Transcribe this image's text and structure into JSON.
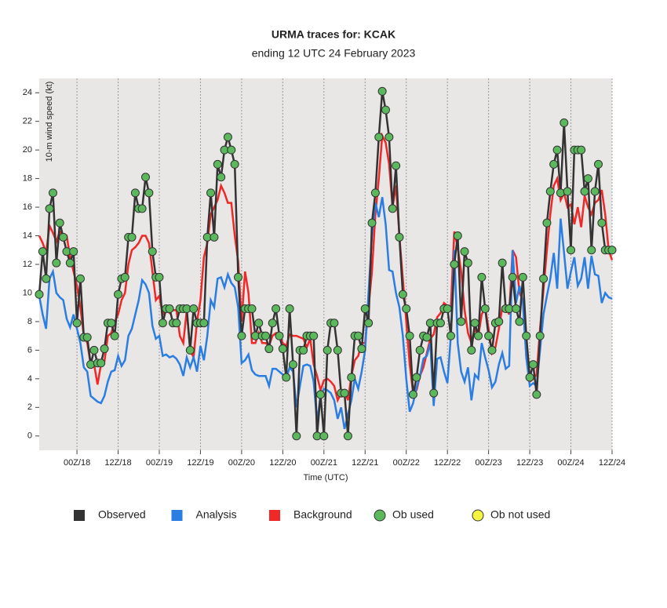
{
  "chart_data": {
    "type": "line",
    "title": "URMA traces for: KCAK",
    "subtitle": "ending 12 UTC 24 February 2023",
    "x_label": "Time (UTC)",
    "y_label": "10-m wind speed (kt)",
    "x": [
      -11,
      -10,
      -9,
      -8,
      -7,
      -6,
      -5,
      -4,
      -3,
      -2,
      -1,
      0,
      1,
      2,
      3,
      4,
      5,
      6,
      7,
      8,
      9,
      10,
      11,
      12,
      13,
      14,
      15,
      16,
      17,
      18,
      19,
      20,
      21,
      22,
      23,
      24,
      25,
      26,
      27,
      28,
      29,
      30,
      31,
      32,
      33,
      34,
      35,
      36,
      37,
      38,
      39,
      40,
      41,
      42,
      43,
      44,
      45,
      46,
      47,
      48,
      49,
      50,
      51,
      52,
      53,
      54,
      55,
      56,
      57,
      58,
      59,
      60,
      61,
      62,
      63,
      64,
      65,
      66,
      67,
      68,
      69,
      70,
      71,
      72,
      73,
      74,
      75,
      76,
      77,
      78,
      79,
      80,
      81,
      82,
      83,
      84,
      85,
      86,
      87,
      88,
      89,
      90,
      91,
      92,
      93,
      94,
      95,
      96,
      97,
      98,
      99,
      100,
      101,
      102,
      103,
      104,
      105,
      106,
      107,
      108,
      109,
      110,
      111,
      112,
      113,
      114,
      115,
      116,
      117,
      118,
      119,
      120,
      121,
      122,
      123,
      124,
      125,
      126,
      127,
      128,
      129,
      130,
      131,
      132,
      133,
      134,
      135,
      136,
      137,
      138,
      139,
      140,
      141,
      142,
      143,
      144,
      145,
      146,
      147,
      148,
      149,
      150,
      151,
      152,
      153,
      154,
      155,
      156
    ],
    "series": [
      {
        "name": "Observed",
        "color": "#333333",
        "values": [
          9.9,
          12.9,
          11,
          15.9,
          17,
          12.1,
          14.9,
          13.9,
          12.9,
          12.1,
          12.9,
          7.9,
          11,
          6.9,
          6.9,
          5,
          6,
          5.1,
          5.1,
          6.1,
          7.9,
          7.9,
          7,
          9.9,
          11,
          11.1,
          13.9,
          13.9,
          17,
          15.9,
          15.9,
          18.1,
          17,
          12.9,
          11.1,
          11.1,
          7.9,
          8.9,
          8.9,
          7.9,
          7.9,
          8.9,
          8.9,
          8.9,
          6,
          8.9,
          7.9,
          7.9,
          7.9,
          13.9,
          17,
          13.9,
          19,
          18.1,
          20,
          20.9,
          20,
          19,
          11.1,
          7,
          8.9,
          8.9,
          8.9,
          7,
          7.9,
          7,
          7,
          6.1,
          7.9,
          8.9,
          7,
          6.1,
          4.1,
          8.9,
          5,
          0,
          6,
          6,
          7,
          7,
          7,
          0,
          2.9,
          0,
          6,
          7.9,
          7.9,
          6,
          3,
          3,
          0,
          4.1,
          7,
          7,
          6.1,
          8.9,
          7.9,
          14.9,
          17,
          20.9,
          24.1,
          22.8,
          20.9,
          15.9,
          18.9,
          13.9,
          9.9,
          8.9,
          7,
          2.9,
          4.1,
          6,
          7,
          6.9,
          7.9,
          3,
          7.9,
          7.9,
          8.9,
          8.9,
          7,
          12,
          14,
          8,
          12.9,
          12.1,
          6,
          7.9,
          7,
          11.1,
          8.9,
          7,
          6,
          7.9,
          8,
          12.1,
          8.9,
          8.9,
          11.1,
          8.9,
          8,
          11.1,
          7,
          4.1,
          5,
          2.9,
          7,
          11,
          14.9,
          17.1,
          19,
          20,
          17,
          21.9,
          17.1,
          13,
          20,
          20,
          20,
          17.1,
          18,
          13,
          17.1,
          19,
          14.9,
          13,
          13,
          13
        ]
      },
      {
        "name": "Analysis",
        "color": "#2a7de1",
        "values": [
          9.8,
          8.5,
          7.5,
          11,
          11.5,
          10,
          9.7,
          9.5,
          8.2,
          7.6,
          8.5,
          7.5,
          6.5,
          4.8,
          4.5,
          2.8,
          2.6,
          2.4,
          2.3,
          2.8,
          3.8,
          4.5,
          4.6,
          5.6,
          4.9,
          5.3,
          7,
          7.5,
          8.5,
          9.5,
          10.9,
          10.6,
          10,
          7.7,
          6.8,
          7,
          5.6,
          5.7,
          5.5,
          5.6,
          5.4,
          5,
          4.2,
          5.5,
          4.8,
          5.5,
          4.5,
          6.3,
          5.3,
          7,
          9.5,
          9,
          11,
          11.1,
          10.4,
          11.3,
          10.7,
          10.4,
          9,
          5.1,
          5.3,
          5.7,
          4.6,
          4.3,
          4.2,
          4.2,
          4.2,
          3.5,
          4.7,
          4.7,
          4.5,
          4.3,
          4,
          4.8,
          4.5,
          2,
          3.5,
          4.9,
          5,
          4.9,
          3.8,
          1,
          2.8,
          3.3,
          3.2,
          3,
          2.5,
          1.2,
          2,
          0.5,
          1.5,
          2.5,
          4,
          3.3,
          4.5,
          6,
          10,
          14,
          16.3,
          15.3,
          16.7,
          14.8,
          11.6,
          11.5,
          10,
          9,
          7,
          4,
          1.7,
          2.3,
          3.4,
          4.2,
          5.4,
          5.6,
          6.5,
          2.1,
          5.4,
          5.5,
          4.5,
          3.7,
          7,
          13,
          6.5,
          4.5,
          3.8,
          4.8,
          2.5,
          4.3,
          4,
          6.5,
          5.5,
          4.6,
          3.4,
          3.8,
          5,
          5.8,
          4.7,
          4.9,
          13,
          9.3,
          10.5,
          9.3,
          5.5,
          3.5,
          3.7,
          3.5,
          6,
          8.5,
          9.8,
          11,
          12.8,
          10.3,
          15.2,
          12.8,
          10.3,
          11.5,
          12.5,
          10.5,
          11,
          12.5,
          10.3,
          12.6,
          11.3,
          11.2,
          9.3,
          10,
          9.7,
          9.6
        ]
      },
      {
        "name": "Background",
        "color": "#f02828",
        "values": [
          14,
          13.5,
          12.8,
          14.7,
          14.2,
          13.6,
          14.3,
          14,
          14,
          12.5,
          11.5,
          10.5,
          9,
          7,
          6.5,
          5,
          5,
          3.6,
          5,
          5.2,
          7,
          7.2,
          8,
          8.5,
          9.5,
          10,
          12,
          13,
          13.2,
          13.5,
          14,
          14,
          13.5,
          11.5,
          9.5,
          9.8,
          8.5,
          8.8,
          8.6,
          8.8,
          8.8,
          7,
          6.5,
          8.8,
          6,
          5.5,
          8,
          9.5,
          12.5,
          13.5,
          15.5,
          16,
          16.5,
          17.5,
          17,
          16.3,
          16.3,
          14,
          12.2,
          8,
          11.5,
          10,
          6.5,
          6.5,
          7.2,
          6.5,
          6.5,
          6.3,
          7,
          7.2,
          7.2,
          6.5,
          6.3,
          7.1,
          7,
          7,
          6.9,
          6.8,
          6.2,
          6.8,
          5,
          4.2,
          3.2,
          3.9,
          4,
          3.8,
          3.5,
          2.5,
          3,
          3.2,
          2.5,
          4.2,
          5.3,
          5.6,
          6.5,
          6.5,
          9,
          11.5,
          15.5,
          18,
          21,
          20.5,
          19,
          16,
          17.5,
          14,
          11,
          8,
          5,
          3,
          3.2,
          4.2,
          4.8,
          5.8,
          6.8,
          7.1,
          8.3,
          8.6,
          9.3,
          9.1,
          9,
          14.3,
          13.2,
          11.5,
          8.8,
          7.2,
          6.5,
          7.5,
          7,
          8.5,
          9,
          7.5,
          5.8,
          6.2,
          7.5,
          9,
          9,
          8.5,
          13,
          12.5,
          10,
          9.5,
          5.5,
          3.8,
          4,
          4.3,
          7.5,
          10.2,
          13,
          15.5,
          17.5,
          18,
          16.5,
          17,
          16,
          16.2,
          14.8,
          16,
          14.6,
          16.8,
          16,
          15.5,
          16.3,
          16.5,
          17.2,
          15.5,
          13,
          12.3
        ]
      }
    ],
    "markers": [
      {
        "name": "Ob used",
        "color": "#5cb85c"
      },
      {
        "name": "Ob not used",
        "color": "#f5f542"
      }
    ],
    "xlim": [
      -11,
      156
    ],
    "xticks": [
      {
        "value": 0,
        "label": "00Z/18"
      },
      {
        "value": 12,
        "label": "12Z/18"
      },
      {
        "value": 24,
        "label": "00Z/19"
      },
      {
        "value": 36,
        "label": "12Z/19"
      },
      {
        "value": 48,
        "label": "00Z/20"
      },
      {
        "value": 60,
        "label": "12Z/20"
      },
      {
        "value": 72,
        "label": "00Z/21"
      },
      {
        "value": 84,
        "label": "12Z/21"
      },
      {
        "value": 96,
        "label": "00Z/22"
      },
      {
        "value": 108,
        "label": "12Z/22"
      },
      {
        "value": 120,
        "label": "00Z/23"
      },
      {
        "value": 132,
        "label": "12Z/23"
      },
      {
        "value": 144,
        "label": "00Z/24"
      },
      {
        "value": 156,
        "label": "12Z/24"
      }
    ],
    "ylim": [
      -1,
      25
    ],
    "yticks": [
      0,
      2,
      4,
      6,
      8,
      10,
      12,
      14,
      16,
      18,
      20,
      22,
      24
    ],
    "grid": true
  }
}
